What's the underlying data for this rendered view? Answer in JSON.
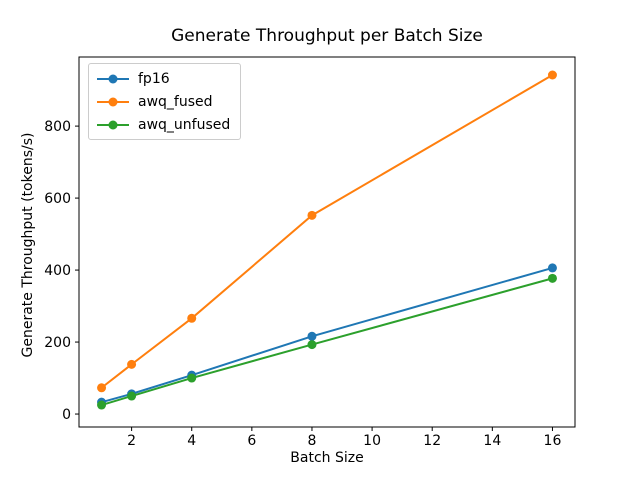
{
  "chart_data": {
    "type": "line",
    "title": "Generate Throughput per Batch Size",
    "xlabel": "Batch Size",
    "ylabel": "Generate Throughput (tokens/s)",
    "x": [
      1,
      2,
      4,
      8,
      16
    ],
    "series": [
      {
        "name": "fp16",
        "color": "#1f77b4",
        "values": [
          33,
          56,
          108,
          216,
          406
        ]
      },
      {
        "name": "awq_fused",
        "color": "#ff7f0e",
        "values": [
          73,
          138,
          266,
          552,
          942
        ]
      },
      {
        "name": "awq_unfused",
        "color": "#2ca02c",
        "values": [
          25,
          50,
          100,
          193,
          377
        ]
      }
    ],
    "xticks": [
      2,
      4,
      6,
      8,
      10,
      12,
      14,
      16
    ],
    "yticks": [
      0,
      200,
      400,
      600,
      800
    ],
    "xlim": [
      0.25,
      16.75
    ],
    "ylim": [
      -36,
      992
    ],
    "grid": false,
    "legend_position": "upper left",
    "marker": "circle",
    "line_style": "solid",
    "spine_color": "#000000",
    "background_color": "#ffffff"
  }
}
